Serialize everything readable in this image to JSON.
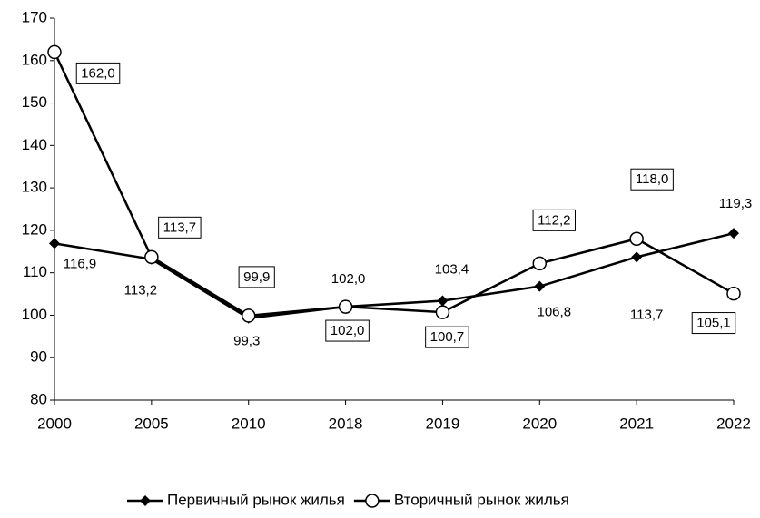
{
  "chart_data": {
    "type": "line",
    "categories": [
      "2000",
      "2005",
      "2010",
      "2018",
      "2019",
      "2020",
      "2021",
      "2022"
    ],
    "series": [
      {
        "name": "Первичный рынок жилья",
        "color": "#000000",
        "marker": "diamond",
        "values": [
          116.9,
          113.2,
          99.3,
          102.0,
          103.4,
          106.8,
          113.7,
          119.3
        ],
        "value_labels": [
          "116,9",
          "113,2",
          "99,3",
          "102,0",
          "103,4",
          "106,8",
          "113,7",
          "119,3"
        ]
      },
      {
        "name": "Вторичный рынок жилья",
        "color": "#000000",
        "marker": "circle",
        "values": [
          162.0,
          113.7,
          99.9,
          102.0,
          100.7,
          112.2,
          118.0,
          105.1
        ],
        "value_labels": [
          "162,0",
          "113,7",
          "99,9",
          "102,0",
          "100,7",
          "112,2",
          "118,0",
          "105,1"
        ]
      }
    ],
    "ylim": [
      80,
      170
    ],
    "yticks": [
      80,
      90,
      100,
      110,
      120,
      130,
      140,
      150,
      160,
      170
    ],
    "grid": false,
    "legend": "bottom"
  }
}
